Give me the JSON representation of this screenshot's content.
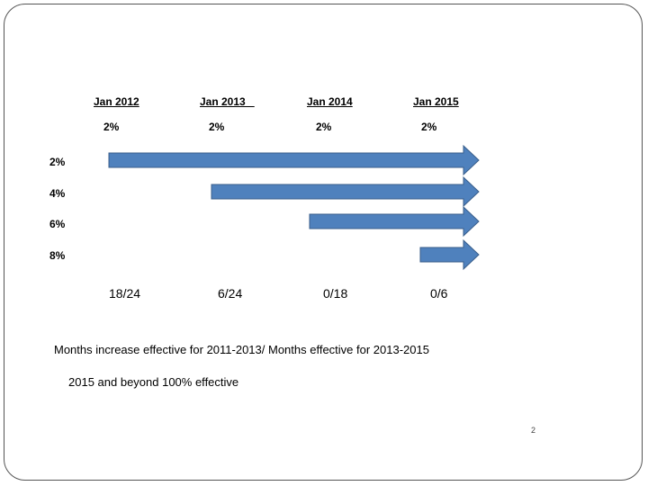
{
  "column_headers": [
    "Jan 2012",
    "Jan 2013   ",
    "Jan 2014",
    "Jan 2015"
  ],
  "column_percents": [
    "2%",
    "2%",
    "2%",
    "2%"
  ],
  "rows": [
    {
      "label": "2%",
      "start_column": 0
    },
    {
      "label": "4%",
      "start_column": 1
    },
    {
      "label": "6%",
      "start_column": 2
    },
    {
      "label": "8%",
      "start_column": 3
    }
  ],
  "bottom_fractions": [
    "18/24",
    "6/24",
    "0/18",
    "0/6"
  ],
  "note_line1": "Months increase effective for  2011-2013/ Months effective for 2013-2015",
  "note_line2": "2015 and beyond 100% effective",
  "page_number": "2",
  "colors": {
    "arrow_fill": "#4F81BD",
    "arrow_stroke": "#385D8A"
  }
}
